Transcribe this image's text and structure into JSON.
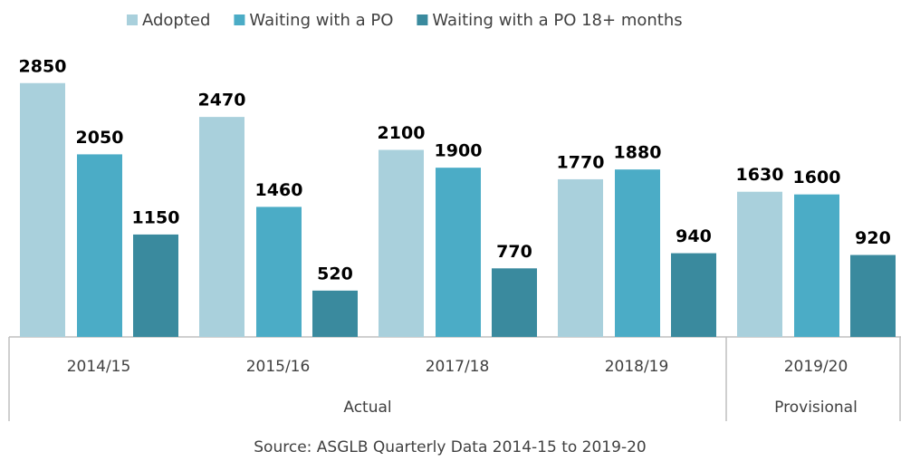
{
  "chart_data": {
    "type": "bar",
    "groups": [
      {
        "name": "Actual",
        "categories": [
          "2014/15",
          "2015/16",
          "2017/18",
          "2018/19"
        ]
      },
      {
        "name": "Provisional",
        "categories": [
          "2019/20"
        ]
      }
    ],
    "series": [
      {
        "name": "Adopted",
        "color": "#a9d0dc",
        "values": [
          2850,
          2470,
          2100,
          1770,
          1630
        ]
      },
      {
        "name": "Waiting with a PO",
        "color": "#4bacc6",
        "values": [
          2050,
          1460,
          1900,
          1880,
          1600
        ]
      },
      {
        "name": "Waiting with a PO 18+ months",
        "color": "#3a8a9e",
        "values": [
          1150,
          520,
          770,
          940,
          920
        ]
      }
    ],
    "ylim": [
      0,
      3000
    ],
    "source": "Source:  ASGLB Quarterly Data 2014-15 to 2019-20"
  }
}
